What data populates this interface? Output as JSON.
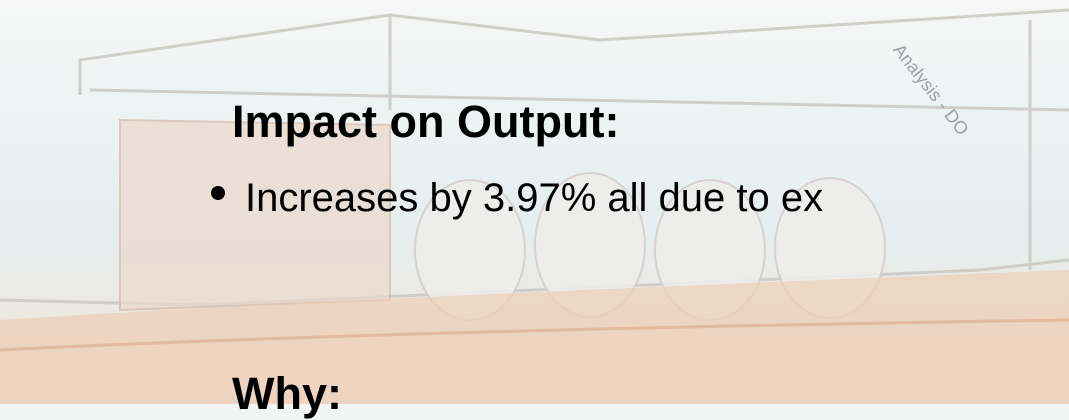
{
  "heading": "Impact on Output:",
  "bullets": [
    "Increases by 3.97% all due to ex"
  ],
  "heading2": "Why:",
  "watermark": "Analysis - DO"
}
